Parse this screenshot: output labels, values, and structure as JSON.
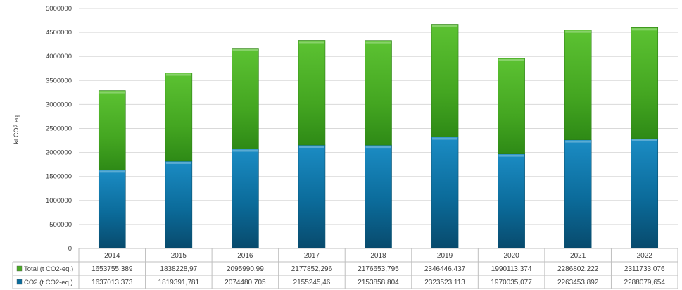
{
  "chart_data": {
    "type": "bar",
    "stacked": true,
    "title": "",
    "xlabel": "",
    "ylabel": "kt CO2 eq.",
    "ylim": [
      0,
      5000000
    ],
    "yticks": [
      "0",
      "500000",
      "1000000",
      "1500000",
      "2000000",
      "2500000",
      "3000000",
      "3500000",
      "4000000",
      "4500000",
      "5000000"
    ],
    "grid": true,
    "legend": "data-table-left",
    "categories": [
      "2014",
      "2015",
      "2016",
      "2017",
      "2018",
      "2019",
      "2020",
      "2021",
      "2022"
    ],
    "series": [
      {
        "name": "CO2 (t CO2-eq.)",
        "color": "#0a6c9c",
        "values": [
          1637013.373,
          1819391.781,
          2074480.705,
          2155245.46,
          2153858.804,
          2323523.113,
          1970035.077,
          2263453.892,
          2288079.654
        ],
        "labels": [
          "1637013,373",
          "1819391,781",
          "2074480,705",
          "2155245,46",
          "2153858,804",
          "2323523,113",
          "1970035,077",
          "2263453,892",
          "2288079,654"
        ]
      },
      {
        "name": "Total (t CO2-eq.)",
        "color": "#4aab24",
        "values": [
          1653755.389,
          1838228.97,
          2095990.99,
          2177852.296,
          2176653.795,
          2346446.437,
          1990113.374,
          2286802.222,
          2311733.076
        ],
        "labels": [
          "1653755,389",
          "1838228,97",
          "2095990,99",
          "2177852,296",
          "2176653,795",
          "2346446,437",
          "1990113,374",
          "2286802,222",
          "2311733,076"
        ]
      }
    ]
  }
}
